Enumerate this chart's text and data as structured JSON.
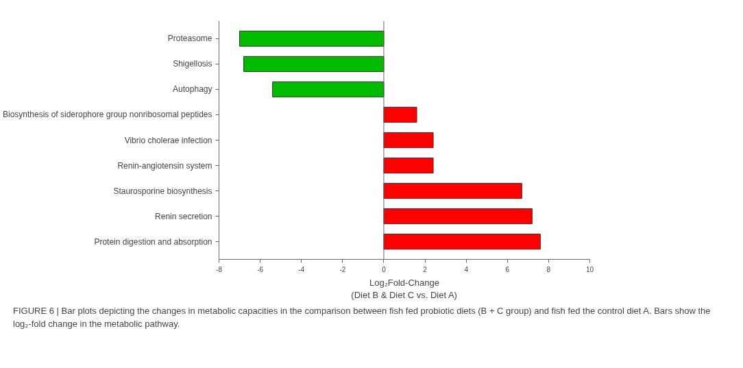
{
  "chart_data": {
    "type": "bar",
    "orientation": "horizontal",
    "categories": [
      "Proteasome",
      "Shigellosis",
      "Autophagy",
      "Biosynthesis of siderophore group nonribosomal peptides",
      "Vibrio cholerae infection",
      "Renin-angiotensin system",
      "Staurosporine biosynthesis",
      "Renin secretion",
      "Protein digestion and absorption"
    ],
    "values": [
      -7.0,
      -6.8,
      -5.4,
      1.6,
      2.4,
      2.4,
      6.7,
      7.2,
      7.6
    ],
    "colors": [
      "#00bb00",
      "#00bb00",
      "#00bb00",
      "#ff0000",
      "#ff0000",
      "#ff0000",
      "#ff0000",
      "#ff0000",
      "#ff0000"
    ],
    "xlim": [
      -8,
      10
    ],
    "xticks": [
      -8,
      -6,
      -4,
      -2,
      0,
      2,
      4,
      6,
      8,
      10
    ],
    "xlabel": "Log₂Fold-Change\n(Diet B & Diet C vs. Diet A)",
    "grid": false,
    "ref_lines": [
      {
        "axis": "x",
        "value": 0,
        "color": "#666666"
      }
    ],
    "annotations": [
      "FIGURE 6 | Bar plots depicting the changes in metabolic capacities in the comparison between fish fed probiotic diets (B + C group) and fish fed the control diet A. Bars show the log₂-fold change in the metabolic pathway."
    ]
  }
}
